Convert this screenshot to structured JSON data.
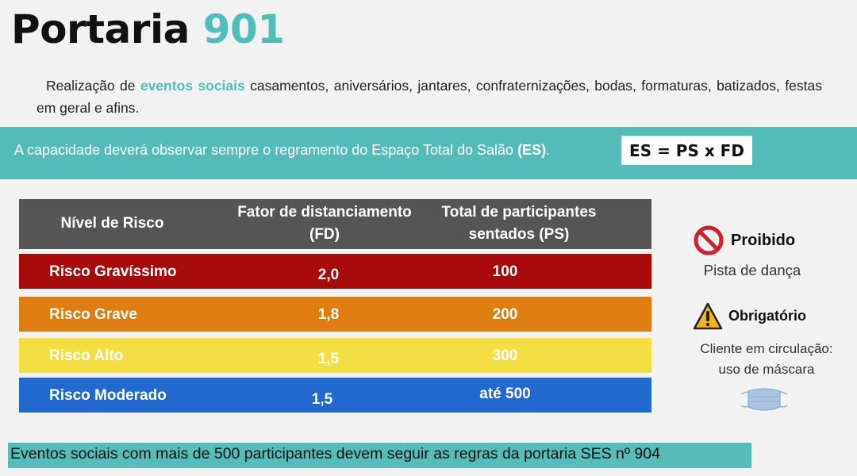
{
  "title": {
    "main": "Portaria",
    "number": "901"
  },
  "intro": {
    "before": "Realização de",
    "highlight": "eventos sociais",
    "after": " casamentos, aniversários, jantares, confraternizações, bodas, formaturas, batizados, festas em geral e afins."
  },
  "band": {
    "text_before": "A capacidade deverá observar sempre o regramento do Espaço Total do Salão ",
    "es": "(ES)",
    "text_after": ".",
    "formula": "ES = PS x FD"
  },
  "table": {
    "headers": [
      "Nível de Risco",
      "Fator de distanciamento (FD)",
      "Total de participantes sentados (PS)"
    ],
    "rows": [
      {
        "level": "Risco Gravíssimo",
        "fd": "2,0",
        "ps": "100",
        "color": "#a80a0a"
      },
      {
        "level": "Risco Grave",
        "fd": "1,8",
        "ps": "200",
        "color": "#dd7d12"
      },
      {
        "level": "Risco Alto",
        "fd": "1,5",
        "ps": "300",
        "color": "#f3df43"
      },
      {
        "level": "Risco Moderado",
        "fd": "1,5",
        "ps": "até 500",
        "color": "#2168cf"
      }
    ]
  },
  "side": {
    "prohibited_title": "Proibido",
    "prohibited_text": "Pista de dança",
    "prohibited_icon": "prohibited-icon",
    "mandatory_title": "Obrigatório",
    "mandatory_line1": "Cliente em circulação:",
    "mandatory_line2": "uso de máscara",
    "mandatory_icon": "warning-icon",
    "mask_icon": "face-mask-icon"
  },
  "footer": "Eventos sociais com mais de 500 participantes devem seguir as regras da portaria SES nº 904",
  "colors": {
    "accent": "#4fbdb8",
    "band": "#53bcb8",
    "header": "#555555"
  }
}
